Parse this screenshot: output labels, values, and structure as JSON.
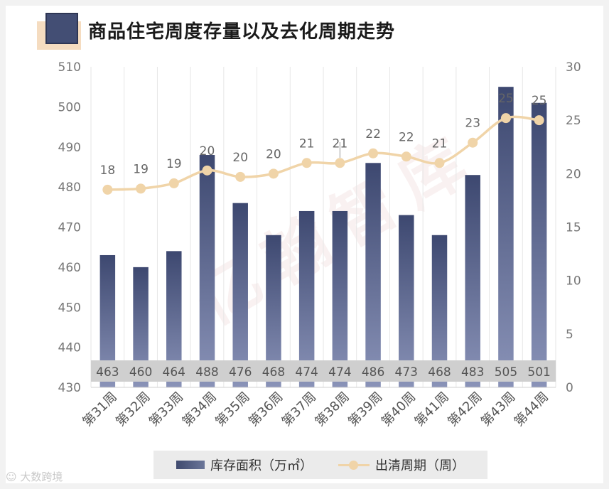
{
  "title": "商品住宅周度存量以及去化周期走势",
  "chart_data": {
    "type": "bar+line",
    "title": "商品住宅周度存量以及去化周期走势",
    "categories": [
      "第31周",
      "第32周",
      "第33周",
      "第34周",
      "第35周",
      "第36周",
      "第37周",
      "第38周",
      "第39周",
      "第40周",
      "第41周",
      "第42周",
      "第43周",
      "第44周"
    ],
    "series": [
      {
        "name": "库存面积（万㎡）",
        "type": "bar",
        "axis": "left",
        "values": [
          463,
          460,
          464,
          488,
          476,
          468,
          474,
          474,
          486,
          473,
          468,
          483,
          505,
          501
        ],
        "labels": [
          "463",
          "460",
          "464",
          "488",
          "476",
          "468",
          "474",
          "474",
          "486",
          "473",
          "468",
          "483",
          "505",
          "501"
        ]
      },
      {
        "name": "出清周期（周）",
        "type": "line",
        "axis": "right",
        "values": [
          18.5,
          18.6,
          19.1,
          20.3,
          19.7,
          20.0,
          21.0,
          21.0,
          21.9,
          21.6,
          21.0,
          22.9,
          25.2,
          25.0
        ],
        "labels": [
          "18",
          "19",
          "19",
          "20",
          "20",
          "20",
          "21",
          "21",
          "22",
          "22",
          "21",
          "23",
          "25",
          "25"
        ]
      }
    ],
    "y_left": {
      "min": 430,
      "max": 510,
      "ticks": [
        "430",
        "440",
        "450",
        "460",
        "470",
        "480",
        "490",
        "500",
        "510"
      ]
    },
    "y_right": {
      "min": 0,
      "max": 30,
      "ticks": [
        "0",
        "5",
        "10",
        "15",
        "20",
        "25",
        "30"
      ]
    },
    "colors": {
      "bar_top": "#3d4870",
      "bar_bottom": "#8a93b8",
      "line": "#f0d4a8",
      "label_band": "#cfcfcf"
    }
  },
  "legend": {
    "bar_label": "库存面积（万㎡）",
    "line_label": "出清周期（周）"
  },
  "watermark_text": "亿翰智库",
  "source_text": "大数跨境"
}
